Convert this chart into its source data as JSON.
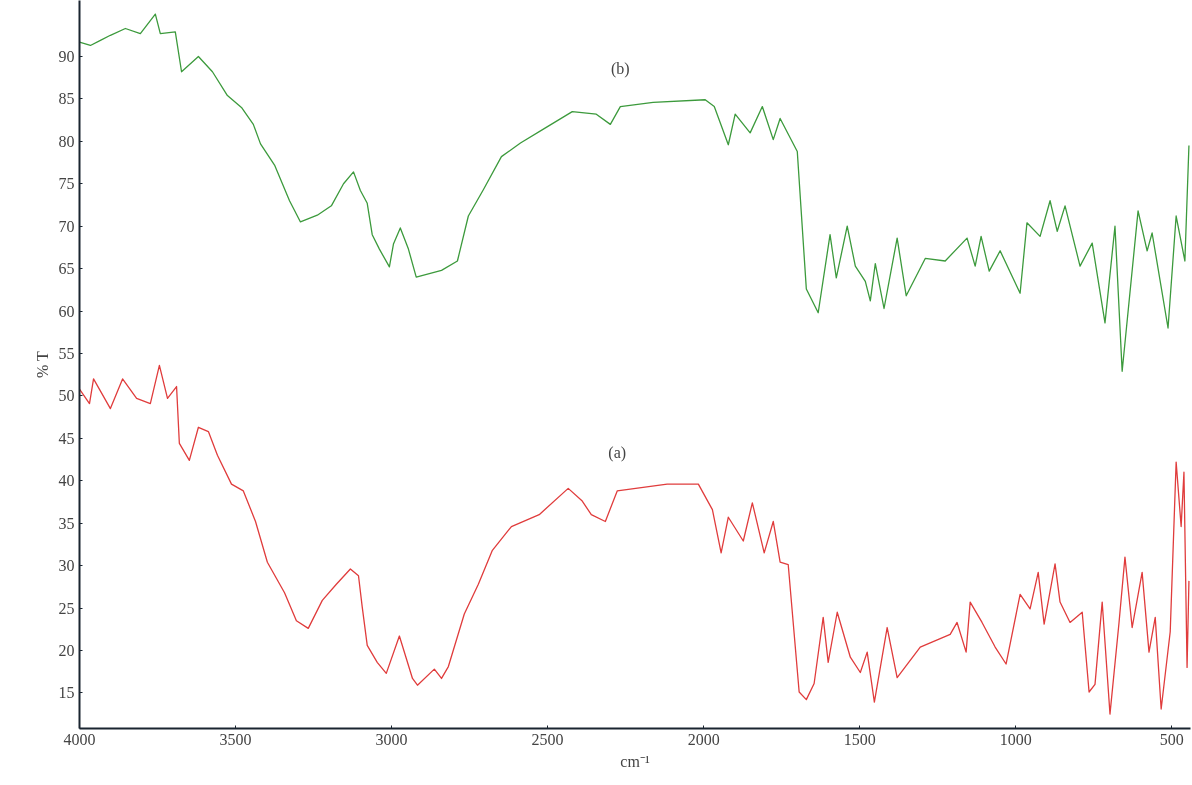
{
  "chart_data": {
    "type": "line",
    "xlabel": "cm⁻¹",
    "ylabel": "% T",
    "xlim": [
      4000,
      440
    ],
    "ylim": [
      10.8,
      96.6
    ],
    "xticks": [
      4000,
      3500,
      3000,
      2500,
      2000,
      1500,
      1000,
      500
    ],
    "yticks": [
      15,
      20,
      25,
      30,
      35,
      40,
      45,
      50,
      55,
      60,
      65,
      70,
      75,
      80,
      85,
      90
    ],
    "grid": false,
    "legend": false,
    "marker": "none",
    "line_style": "solid",
    "series": [
      {
        "name": "(b)",
        "color": "#3c9a3c",
        "x": [
          4000,
          3965,
          3933,
          3901,
          3853,
          3805,
          3757,
          3741,
          3693,
          3673,
          3619,
          3574,
          3526,
          3481,
          3443,
          3420,
          3375,
          3327,
          3292,
          3238,
          3193,
          3154,
          3122,
          3100,
          3078,
          3062,
          3039,
          3007,
          2994,
          2972,
          2946,
          2921,
          2840,
          2789,
          2754,
          2706,
          2648,
          2587,
          2511,
          2421,
          2344,
          2299,
          2267,
          2162,
          1995,
          1966,
          1921,
          1899,
          1851,
          1812,
          1777,
          1755,
          1700,
          1671,
          1633,
          1595,
          1575,
          1540,
          1514,
          1482,
          1466,
          1450,
          1422,
          1380,
          1351,
          1290,
          1226,
          1156,
          1130,
          1111,
          1085,
          1050,
          986,
          964,
          922,
          890,
          867,
          842,
          794,
          755,
          714,
          682,
          659,
          608,
          579,
          563,
          512,
          486,
          458,
          445
        ],
        "values": [
          91.7,
          91.3,
          91.9,
          92.5,
          93.3,
          92.7,
          95,
          92.7,
          92.9,
          88.2,
          90,
          88.2,
          85.4,
          84,
          82,
          79.7,
          77.2,
          73,
          70.5,
          71.3,
          72.4,
          75,
          76.4,
          74.2,
          72.7,
          69,
          67.3,
          65.2,
          67.9,
          69.8,
          67.3,
          64,
          64.8,
          65.9,
          71.2,
          74.3,
          78.2,
          79.8,
          81.5,
          83.5,
          83.2,
          82,
          84.1,
          84.6,
          84.9,
          84.1,
          79.6,
          83.2,
          81,
          84.1,
          80.2,
          82.7,
          78.8,
          62.6,
          59.8,
          69,
          63.9,
          70,
          65.3,
          63.5,
          61.2,
          65.6,
          60.3,
          68.6,
          61.8,
          66.2,
          65.9,
          68.6,
          65.3,
          68.8,
          64.7,
          67.1,
          62.1,
          70.4,
          68.8,
          73,
          69.4,
          72.4,
          65.3,
          68,
          58.6,
          70,
          52.9,
          71.8,
          67.1,
          69.2,
          58,
          71.2,
          65.9,
          79.5
        ]
      },
      {
        "name": "(a)",
        "color": "#e03c3c",
        "x": [
          4000,
          3968,
          3955,
          3901,
          3862,
          3817,
          3773,
          3744,
          3718,
          3689,
          3680,
          3648,
          3619,
          3587,
          3558,
          3513,
          3475,
          3436,
          3398,
          3343,
          3305,
          3267,
          3222,
          3177,
          3132,
          3106,
          3094,
          3078,
          3046,
          3017,
          2975,
          2933,
          2917,
          2863,
          2840,
          2818,
          2767,
          2722,
          2677,
          2616,
          2527,
          2434,
          2389,
          2360,
          2315,
          2277,
          2117,
          2017,
          1972,
          1944,
          1921,
          1873,
          1844,
          1806,
          1777,
          1755,
          1729,
          1694,
          1671,
          1646,
          1617,
          1601,
          1572,
          1530,
          1498,
          1476,
          1453,
          1412,
          1380,
          1306,
          1210,
          1188,
          1159,
          1146,
          1108,
          1066,
          1031,
          986,
          954,
          928,
          909,
          874,
          858,
          826,
          787,
          765,
          746,
          723,
          698,
          669,
          650,
          627,
          595,
          573,
          553,
          534,
          505,
          486,
          470,
          461,
          451,
          445
        ],
        "values": [
          50.8,
          49.1,
          52,
          48.5,
          52,
          49.7,
          49.1,
          53.6,
          49.7,
          51.1,
          44.4,
          42.4,
          46.3,
          45.8,
          43,
          39.6,
          38.8,
          35.2,
          30.4,
          26.8,
          23.5,
          22.6,
          25.9,
          27.8,
          29.6,
          28.8,
          25.1,
          20.6,
          18.6,
          17.3,
          21.7,
          16.7,
          15.9,
          17.8,
          16.7,
          18.1,
          24.3,
          27.8,
          31.8,
          34.6,
          36,
          39.1,
          37.6,
          36,
          35.2,
          38.8,
          39.6,
          39.6,
          36.6,
          31.5,
          35.7,
          32.9,
          37.4,
          31.5,
          35.2,
          30.4,
          30.1,
          15.1,
          14.2,
          16.1,
          23.9,
          18.6,
          24.5,
          19.2,
          17.4,
          19.8,
          13.9,
          22.7,
          16.8,
          20.4,
          21.9,
          23.3,
          19.8,
          25.7,
          23.3,
          20.4,
          18.4,
          26.6,
          24.9,
          29.2,
          23.1,
          30.2,
          25.7,
          23.3,
          24.5,
          15.1,
          16,
          25.7,
          12.5,
          23.3,
          31,
          22.7,
          29.2,
          19.8,
          23.9,
          13.1,
          22.2,
          42.2,
          34.6,
          41,
          18,
          28.2
        ]
      }
    ]
  }
}
